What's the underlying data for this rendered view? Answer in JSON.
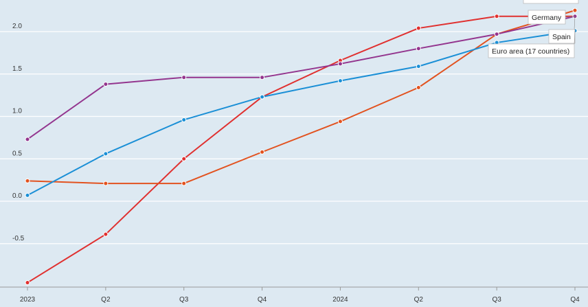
{
  "chart_data": {
    "type": "line",
    "title": "",
    "xlabel": "",
    "ylabel": "",
    "categories": [
      "2023",
      "Q2",
      "Q3",
      "Q4",
      "2024",
      "Q2",
      "Q3",
      "Q4"
    ],
    "ylim": [
      -1.0,
      2.4
    ],
    "yticks": [
      -0.5,
      0.0,
      0.5,
      1.0,
      1.5,
      2.0
    ],
    "ytick_labels": [
      "-0.5",
      "0.0",
      "0.5",
      "1.0",
      "1.5",
      "2.0"
    ],
    "grid": true,
    "series": [
      {
        "name": "Germany",
        "color": "#e0302f",
        "values": [
          -0.96,
          -0.39,
          0.5,
          1.23,
          1.66,
          2.04,
          2.18,
          2.18
        ]
      },
      {
        "name": "",
        "color": "#e2521f",
        "values": [
          0.24,
          0.21,
          0.21,
          0.58,
          0.94,
          1.34,
          1.97,
          2.25
        ]
      },
      {
        "name": "Spain",
        "color": "#93358e",
        "values": [
          0.73,
          1.38,
          1.46,
          1.46,
          1.62,
          1.8,
          1.97,
          2.18
        ]
      },
      {
        "name": "Euro area (17 countries)",
        "color": "#1a8fd6",
        "values": [
          0.07,
          0.56,
          0.96,
          1.23,
          1.42,
          1.59,
          1.87,
          2.01
        ]
      }
    ]
  }
}
